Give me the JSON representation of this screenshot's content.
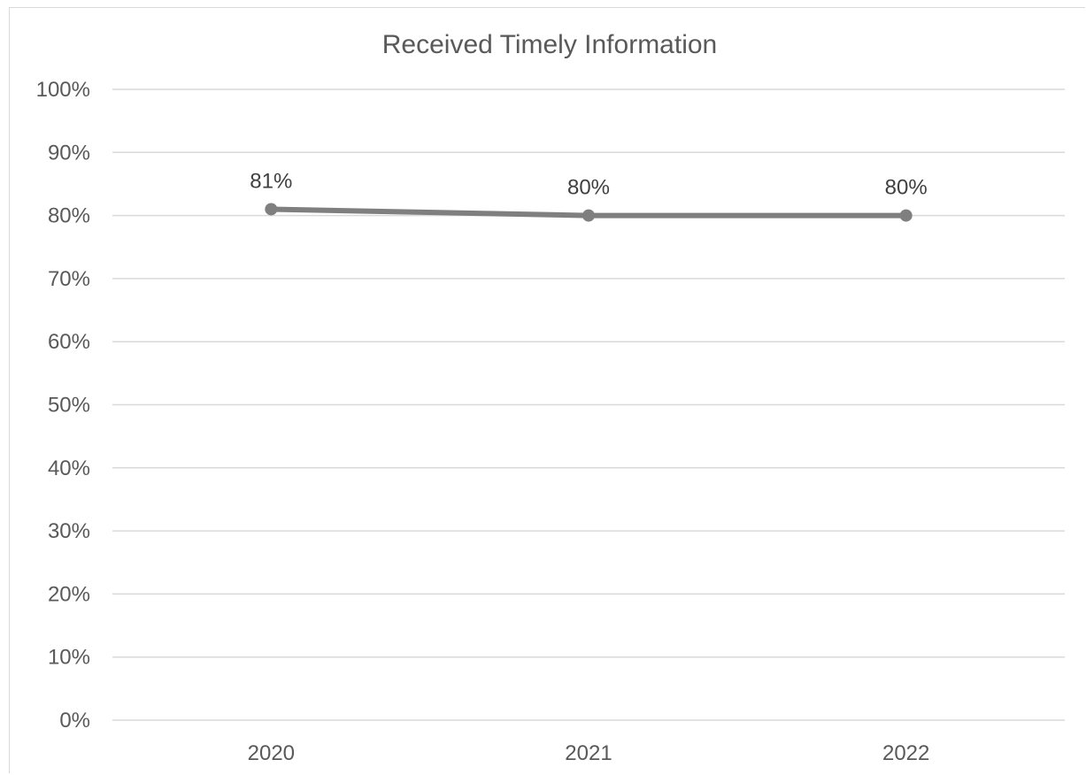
{
  "chart_data": {
    "type": "line",
    "title": "Received Timely Information",
    "xlabel": "",
    "ylabel": "",
    "categories": [
      "2020",
      "2021",
      "2022"
    ],
    "series": [
      {
        "values": [
          81,
          80,
          80
        ],
        "labels": [
          "81%",
          "80%",
          "80%"
        ]
      }
    ],
    "ylim": [
      0,
      100
    ],
    "y_ticks": [
      "0%",
      "10%",
      "20%",
      "30%",
      "40%",
      "50%",
      "60%",
      "70%",
      "80%",
      "90%",
      "100%"
    ],
    "grid": true,
    "legend": "none",
    "colors": {
      "series": "#7f7f7f",
      "grid": "#d9d9d9",
      "text": "#595959"
    }
  }
}
